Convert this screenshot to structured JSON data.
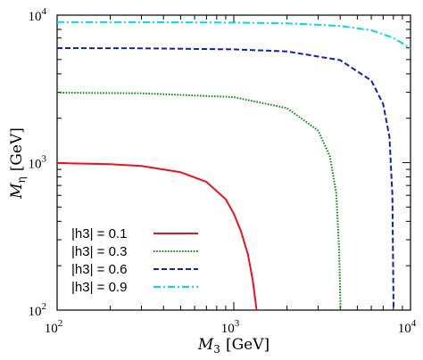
{
  "chart_data": {
    "type": "line",
    "xlabel_main": "M",
    "xlabel_sub": "3",
    "xlabel_unit": "[GeV]",
    "ylabel_main": "M",
    "ylabel_sub": "η",
    "ylabel_unit": "[GeV]",
    "x_scale": "log",
    "y_scale": "log",
    "xlim": [
      100,
      10000
    ],
    "ylim": [
      100,
      10000
    ],
    "x_ticks": [
      {
        "base": "10",
        "exp": "2",
        "value": 100
      },
      {
        "base": "10",
        "exp": "3",
        "value": 1000
      },
      {
        "base": "10",
        "exp": "4",
        "value": 10000
      }
    ],
    "y_ticks": [
      {
        "base": "10",
        "exp": "2",
        "value": 100
      },
      {
        "base": "10",
        "exp": "3",
        "value": 1000
      },
      {
        "base": "10",
        "exp": "4",
        "value": 10000
      }
    ],
    "grid": false,
    "legend_position": "bottom-left",
    "series": [
      {
        "name": "|h3| = 0.1",
        "color": "#e8131f",
        "style": "solid",
        "x": [
          100,
          200,
          300,
          500,
          700,
          900,
          1000,
          1100,
          1200,
          1280,
          1320,
          1345
        ],
        "y": [
          993,
          975,
          948,
          860,
          740,
          565,
          450,
          340,
          240,
          160,
          120,
          100
        ]
      },
      {
        "name": "|h3| = 0.3",
        "color": "#0d8a0d",
        "style": "dotted",
        "x": [
          100,
          300,
          1000,
          2000,
          3000,
          3500,
          3800,
          3950,
          4020
        ],
        "y": [
          2980,
          2950,
          2780,
          2340,
          1650,
          1100,
          620,
          250,
          100
        ]
      },
      {
        "name": "|h3| = 0.6",
        "color": "#1021b8",
        "style": "dashed",
        "x": [
          100,
          300,
          1000,
          2000,
          4000,
          6000,
          7000,
          7600,
          7900,
          8020
        ],
        "y": [
          5980,
          5960,
          5860,
          5680,
          4950,
          3600,
          2500,
          1500,
          600,
          100
        ]
      },
      {
        "name": "|h3| = 0.9",
        "color": "#00d9e8",
        "style": "dashdot",
        "x": [
          100,
          300,
          1000,
          2000,
          4000,
          6000,
          8000,
          9500,
          10000
        ],
        "y": [
          8970,
          8960,
          8900,
          8800,
          8450,
          7900,
          7000,
          6200,
          5900
        ]
      }
    ]
  }
}
